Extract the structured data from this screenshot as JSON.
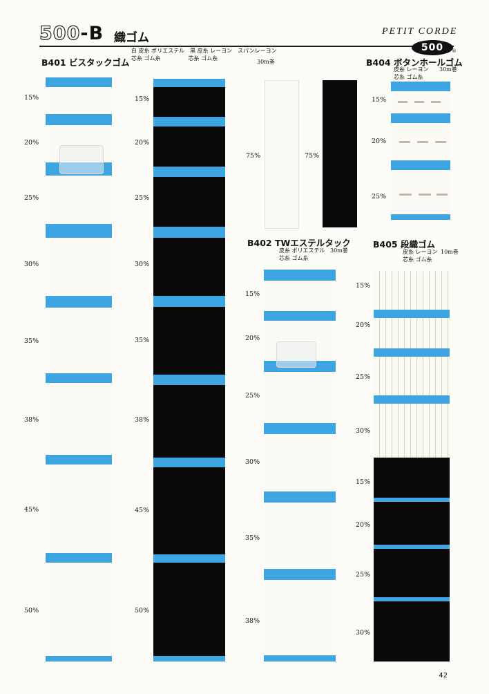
{
  "header": {
    "series_num": "500",
    "series_dash": "-B",
    "title": "織ゴム",
    "brand": "PETIT CORDE",
    "logo": "500",
    "logo_mark": "®"
  },
  "spec_columns": {
    "line1": "白 皮糸 ポリエステル　黒 皮糸 レーヨン　スパンレーヨン",
    "line2": "芯糸 ゴム糸　　　　　芯糸 ゴム糸",
    "roll": "30m巻"
  },
  "b401": {
    "title": "B401 ビスタックゴム",
    "widths": [
      "15%",
      "20%",
      "25%",
      "30%",
      "35%",
      "38%",
      "45%",
      "50%"
    ]
  },
  "black_col": {
    "widths": [
      "15%",
      "20%",
      "25%",
      "30%",
      "35%",
      "38%",
      "45%",
      "50%"
    ]
  },
  "span": {
    "white_width": "75%",
    "black_width": "75%"
  },
  "b402": {
    "title": "B402 TWエステルタック",
    "spec1": "皮糸 ポリエステル",
    "spec2": "芯糸 ゴム糸",
    "roll": "30m巻",
    "widths": [
      "15%",
      "20%",
      "25%",
      "30%",
      "35%",
      "38%"
    ]
  },
  "b404": {
    "title": "B404 ボタンホールゴム",
    "spec1": "皮糸 レーヨン",
    "spec2": "芯糸 ゴム糸",
    "roll": "30m巻",
    "widths": [
      "15%",
      "20%",
      "25%"
    ]
  },
  "b405": {
    "title": "B405 段織ゴム",
    "spec1": "皮糸 レーヨン",
    "spec2": "芯糸 ゴム糸",
    "roll": "10m巻",
    "white_widths": [
      "15%",
      "20%",
      "25%",
      "30%"
    ],
    "black_widths": [
      "15%",
      "20%",
      "25%",
      "30%"
    ]
  },
  "page_number": "42",
  "colors": {
    "blue_card": "#3ea4e2",
    "white_elastic": "#fbfaf4",
    "black_elastic": "#0a0a0a"
  }
}
